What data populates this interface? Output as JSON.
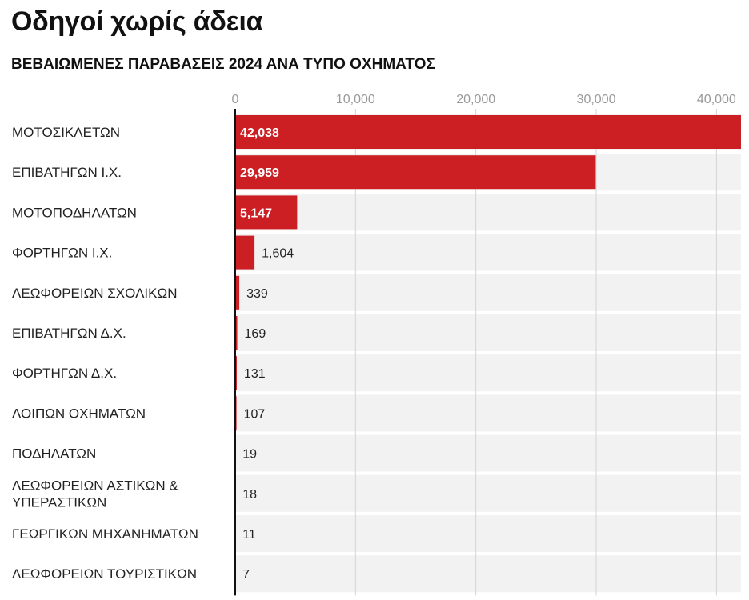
{
  "header": {
    "title": "Οδηγοί χωρίς άδεια",
    "subtitle": "ΒΕΒΑΙΩΜΕΝΕΣ ΠΑΡΑΒΑΣΕΙΣ 2024 ΑΝΑ ΤΥΠΟ ΟΧΗΜΑΤΟΣ"
  },
  "colors": {
    "bar": "#cc1f24",
    "row_background": "#f2f2f2",
    "gridline": "#d4d4d4",
    "axis": "#111111"
  },
  "chart_data": {
    "type": "bar",
    "orientation": "horizontal",
    "title": "Οδηγοί χωρίς άδεια",
    "subtitle": "ΒΕΒΑΙΩΜΕΝΕΣ ΠΑΡΑΒΑΣΕΙΣ 2024 ΑΝΑ ΤΥΠΟ ΟΧΗΜΑΤΟΣ",
    "categories": [
      "ΜΟΤΟΣΙΚΛΕΤΩΝ",
      "ΕΠΙΒΑΤΗΓΩΝ Ι.Χ.",
      "ΜΟΤΟΠΟΔΗΛΑΤΩΝ",
      "ΦΟΡΤΗΓΩΝ Ι.Χ.",
      "ΛΕΩΦΟΡΕΙΩΝ ΣΧΟΛΙΚΩΝ",
      "ΕΠΙΒΑΤΗΓΩΝ Δ.Χ.",
      "ΦΟΡΤΗΓΩΝ Δ.Χ.",
      "ΛΟΙΠΩΝ ΟΧΗΜΑΤΩΝ",
      "ΠΟΔΗΛΑΤΩΝ",
      "ΛΕΩΦΟΡΕΙΩΝ ΑΣΤΙΚΩΝ & ΥΠΕΡΑΣΤΙΚΩΝ",
      "ΓΕΩΡΓΙΚΩΝ ΜΗΧΑΝΗΜΑΤΩΝ",
      "ΛΕΩΦΟΡΕΙΩΝ ΤΟΥΡΙΣΤΙΚΩΝ"
    ],
    "category_label_lines": [
      [
        "ΜΟΤΟΣΙΚΛΕΤΩΝ"
      ],
      [
        "ΕΠΙΒΑΤΗΓΩΝ Ι.Χ."
      ],
      [
        "ΜΟΤΟΠΟΔΗΛΑΤΩΝ"
      ],
      [
        "ΦΟΡΤΗΓΩΝ Ι.Χ."
      ],
      [
        "ΛΕΩΦΟΡΕΙΩΝ ΣΧΟΛΙΚΩΝ"
      ],
      [
        "ΕΠΙΒΑΤΗΓΩΝ Δ.Χ."
      ],
      [
        "ΦΟΡΤΗΓΩΝ Δ.Χ."
      ],
      [
        "ΛΟΙΠΩΝ ΟΧΗΜΑΤΩΝ"
      ],
      [
        "ΠΟΔΗΛΑΤΩΝ"
      ],
      [
        "ΛΕΩΦΟΡΕΙΩΝ ΑΣΤΙΚΩΝ &",
        "ΥΠΕΡΑΣΤΙΚΩΝ"
      ],
      [
        "ΓΕΩΡΓΙΚΩΝ ΜΗΧΑΝΗΜΑΤΩΝ"
      ],
      [
        "ΛΕΩΦΟΡΕΙΩΝ ΤΟΥΡΙΣΤΙΚΩΝ"
      ]
    ],
    "values": [
      42038,
      29959,
      5147,
      1604,
      339,
      169,
      131,
      107,
      19,
      18,
      11,
      7
    ],
    "value_labels": [
      "42,038",
      "29,959",
      "5,147",
      "1,604",
      "339",
      "169",
      "131",
      "107",
      "19",
      "18",
      "11",
      "7"
    ],
    "x_ticks": [
      0,
      10000,
      20000,
      30000,
      40000
    ],
    "x_tick_labels": [
      "0",
      "10,000",
      "20,000",
      "30,000",
      "40,000"
    ],
    "xlim": [
      0,
      42038
    ],
    "grid": true,
    "legend": "none",
    "xlabel": "",
    "ylabel": ""
  }
}
